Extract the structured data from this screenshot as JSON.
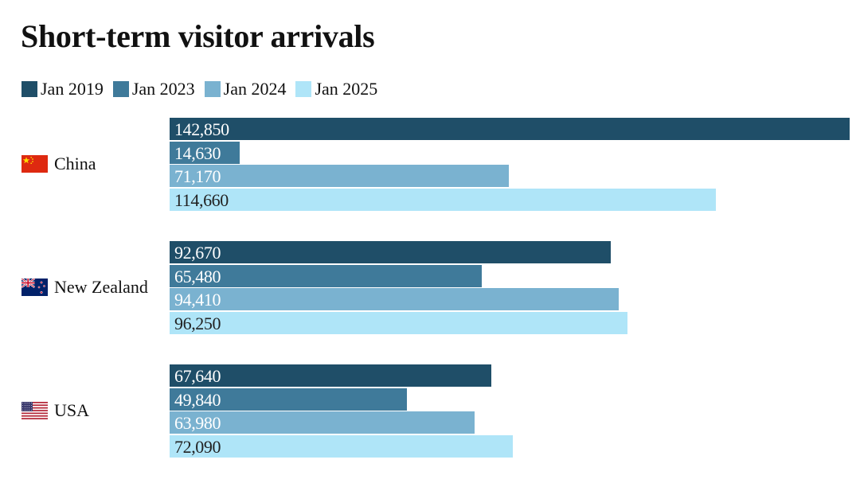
{
  "chart_data": {
    "type": "bar",
    "orientation": "horizontal",
    "title": "Short-term visitor arrivals",
    "categories": [
      "China",
      "New Zealand",
      "USA"
    ],
    "category_flags": [
      "china-flag-icon",
      "new-zealand-flag-icon",
      "usa-flag-icon"
    ],
    "series": [
      {
        "name": "Jan 2019",
        "color": "#1f4e68",
        "values": [
          142850,
          92670,
          67640
        ],
        "value_labels": [
          "142,850",
          "92,670",
          "67,640"
        ],
        "label_color": "#ffffff"
      },
      {
        "name": "Jan 2023",
        "color": "#3f7a9a",
        "values": [
          14630,
          65480,
          49840
        ],
        "value_labels": [
          "14,630",
          "65,480",
          "49,840"
        ],
        "label_color": "#ffffff"
      },
      {
        "name": "Jan 2024",
        "color": "#7ab2d0",
        "values": [
          71170,
          94410,
          63980
        ],
        "value_labels": [
          "71,170",
          "94,410",
          "63,980"
        ],
        "label_color": "#ffffff"
      },
      {
        "name": "Jan 2025",
        "color": "#afe5f8",
        "values": [
          114660,
          96250,
          72090
        ],
        "value_labels": [
          "114,660",
          "96,250",
          "72,090"
        ],
        "label_color": "#222222"
      }
    ],
    "xlim": [
      0,
      142850
    ],
    "grid": false,
    "legend_position": "top-left"
  }
}
